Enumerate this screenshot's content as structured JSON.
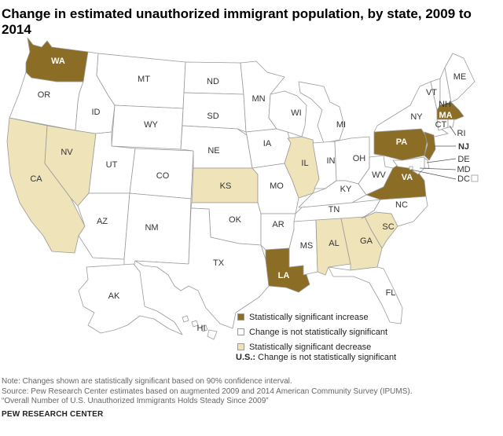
{
  "title": "Change in estimated unauthorized immigrant population, by state, 2009 to 2014",
  "colors": {
    "increase": "#8c6d25",
    "no_change": "#ffffff",
    "decrease": "#efe3b9",
    "border": "#9a9a9a"
  },
  "states": [
    {
      "abbr": "WA",
      "category": "increase"
    },
    {
      "abbr": "OR",
      "category": "no_change"
    },
    {
      "abbr": "CA",
      "category": "decrease"
    },
    {
      "abbr": "NV",
      "category": "decrease"
    },
    {
      "abbr": "ID",
      "category": "no_change"
    },
    {
      "abbr": "MT",
      "category": "no_change"
    },
    {
      "abbr": "WY",
      "category": "no_change"
    },
    {
      "abbr": "UT",
      "category": "no_change"
    },
    {
      "abbr": "AZ",
      "category": "no_change"
    },
    {
      "abbr": "CO",
      "category": "no_change"
    },
    {
      "abbr": "NM",
      "category": "no_change"
    },
    {
      "abbr": "ND",
      "category": "no_change"
    },
    {
      "abbr": "SD",
      "category": "no_change"
    },
    {
      "abbr": "NE",
      "category": "no_change"
    },
    {
      "abbr": "KS",
      "category": "decrease"
    },
    {
      "abbr": "OK",
      "category": "no_change"
    },
    {
      "abbr": "TX",
      "category": "no_change"
    },
    {
      "abbr": "MN",
      "category": "no_change"
    },
    {
      "abbr": "IA",
      "category": "no_change"
    },
    {
      "abbr": "MO",
      "category": "no_change"
    },
    {
      "abbr": "AR",
      "category": "no_change"
    },
    {
      "abbr": "LA",
      "category": "increase"
    },
    {
      "abbr": "WI",
      "category": "no_change"
    },
    {
      "abbr": "IL",
      "category": "decrease"
    },
    {
      "abbr": "MI",
      "category": "no_change"
    },
    {
      "abbr": "IN",
      "category": "no_change"
    },
    {
      "abbr": "OH",
      "category": "no_change"
    },
    {
      "abbr": "KY",
      "category": "no_change"
    },
    {
      "abbr": "TN",
      "category": "no_change"
    },
    {
      "abbr": "MS",
      "category": "no_change"
    },
    {
      "abbr": "AL",
      "category": "decrease"
    },
    {
      "abbr": "GA",
      "category": "decrease"
    },
    {
      "abbr": "FL",
      "category": "no_change"
    },
    {
      "abbr": "SC",
      "category": "decrease"
    },
    {
      "abbr": "NC",
      "category": "no_change"
    },
    {
      "abbr": "VA",
      "category": "increase"
    },
    {
      "abbr": "WV",
      "category": "no_change"
    },
    {
      "abbr": "PA",
      "category": "increase"
    },
    {
      "abbr": "NY",
      "category": "no_change"
    },
    {
      "abbr": "NJ",
      "category": "increase"
    },
    {
      "abbr": "DE",
      "category": "no_change"
    },
    {
      "abbr": "MD",
      "category": "no_change"
    },
    {
      "abbr": "DC",
      "category": "no_change"
    },
    {
      "abbr": "VT",
      "category": "no_change"
    },
    {
      "abbr": "NH",
      "category": "no_change"
    },
    {
      "abbr": "ME",
      "category": "no_change"
    },
    {
      "abbr": "MA",
      "category": "increase"
    },
    {
      "abbr": "CT",
      "category": "no_change"
    },
    {
      "abbr": "RI",
      "category": "no_change"
    },
    {
      "abbr": "AK",
      "category": "no_change"
    },
    {
      "abbr": "HI",
      "category": "no_change"
    }
  ],
  "legend": {
    "increase": "Statistically significant increase",
    "no_change": "Change is not statistically significant",
    "decrease": "Statistically significant decrease"
  },
  "us_note": {
    "label": "U.S.:",
    "text": "Change is not statistically significant"
  },
  "footer": {
    "note": "Note: Changes shown are statistically significant based on 90% confidence interval.",
    "source": "Source: Pew Research Center estimates based on augmented 2009 and 2014 American Community Survey (IPUMS).",
    "report": "“Overall Number of U.S. Unauthorized Immigrants Holds Steady Since 2009”"
  },
  "brand": "PEW RESEARCH CENTER"
}
